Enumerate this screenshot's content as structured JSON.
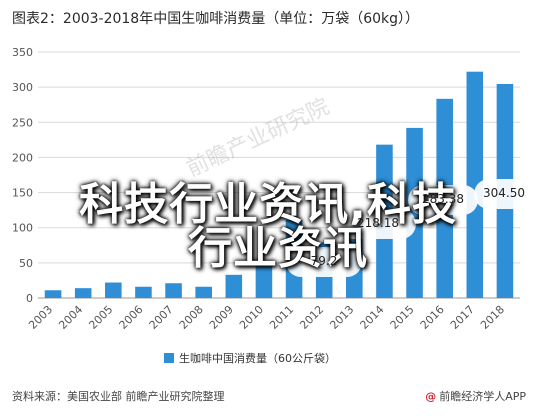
{
  "title": "图表2：2003-2018年中国生咖啡消费量（单位：万袋（60kg））",
  "chart_data": {
    "type": "bar",
    "categories": [
      "2003",
      "2004",
      "2005",
      "2006",
      "2007",
      "2008",
      "2009",
      "2010",
      "2011",
      "2012",
      "2013",
      "2014",
      "2015",
      "2016",
      "2017",
      "2018"
    ],
    "series": [
      {
        "name": "生咖啡中国消费量（60公斤袋）",
        "values": [
          11,
          14,
          22,
          16,
          21,
          16,
          33,
          51,
          111,
          79.2,
          110,
          218.18,
          242,
          283.38,
          322,
          304.5
        ]
      }
    ],
    "ylim": [
      0,
      350
    ],
    "yticks": [
      0,
      50,
      100,
      150,
      200,
      250,
      300,
      350
    ],
    "data_labels": [
      {
        "category": "2012",
        "text": "79.2"
      },
      {
        "category": "2014",
        "text": "218.18"
      },
      {
        "category": "2016",
        "text": "283.38"
      },
      {
        "category": "2018",
        "text": "304.50"
      }
    ],
    "bar_color": "#2e8ed6",
    "grid": true,
    "legend": "bottom"
  },
  "overlay": {
    "line1": "科技行业资讯,科技",
    "line2": "行业资讯"
  },
  "watermark": "前瞻产业研究院",
  "footer": {
    "source": "资料来源：美国农业部 前瞻产业研究院整理",
    "brand_logo": "@",
    "brand": "前瞻经济学人APP"
  }
}
